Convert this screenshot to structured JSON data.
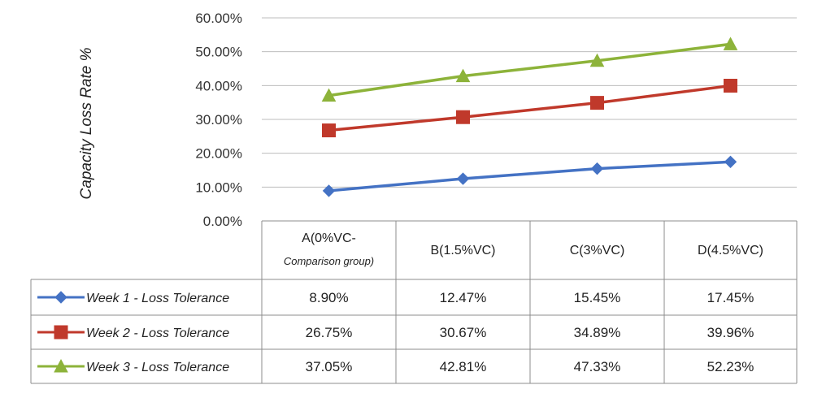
{
  "chart_data": {
    "type": "line",
    "ylabel": "Capacity Loss Rate %",
    "ylim": [
      0,
      60
    ],
    "yticks": [
      "0.00%",
      "10.00%",
      "20.00%",
      "30.00%",
      "40.00%",
      "50.00%",
      "60.00%"
    ],
    "categories": [
      {
        "line1": "A(0%VC-",
        "line2": "Comparison group)"
      },
      {
        "line1": "B(1.5%VC)",
        "line2": ""
      },
      {
        "line1": "C(3%VC)",
        "line2": ""
      },
      {
        "line1": "D(4.5%VC)",
        "line2": ""
      }
    ],
    "grid": true,
    "legend_placement": "data-table",
    "series": [
      {
        "name": "Week 1 - Loss Tolerance",
        "color": "#4472C4",
        "marker": "diamond",
        "values": [
          8.9,
          12.47,
          15.45,
          17.45
        ],
        "labels": [
          "8.90%",
          "12.47%",
          "15.45%",
          "17.45%"
        ]
      },
      {
        "name": "Week 2 - Loss Tolerance",
        "color": "#C0392B",
        "marker": "square",
        "values": [
          26.75,
          30.67,
          34.89,
          39.96
        ],
        "labels": [
          "26.75%",
          "30.67%",
          "34.89%",
          "39.96%"
        ]
      },
      {
        "name": "Week 3 - Loss Tolerance",
        "color": "#8DB33A",
        "marker": "triangle",
        "values": [
          37.05,
          42.81,
          47.33,
          52.23
        ],
        "labels": [
          "37.05%",
          "42.81%",
          "47.33%",
          "52.23%"
        ]
      }
    ]
  }
}
